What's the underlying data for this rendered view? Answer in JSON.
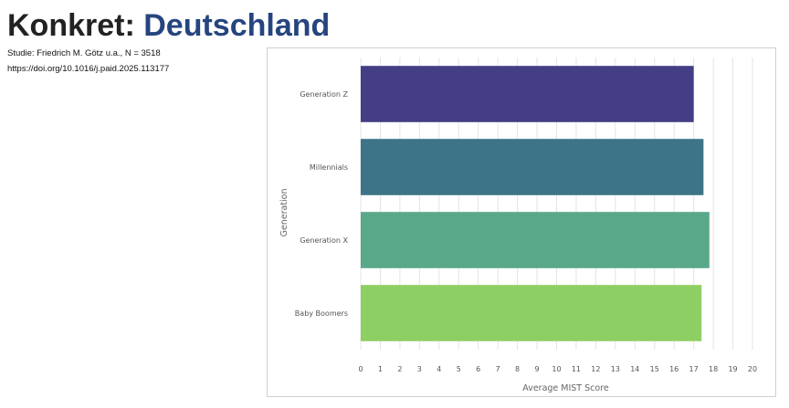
{
  "header": {
    "title_prefix": "Konkret: ",
    "title_accent": "Deutschland",
    "study": "Studie: Friedrich M. Götz u.a., N = 3518",
    "doi": "https://doi.org/10.1016/j.paid.2025.113177"
  },
  "colors": {
    "title_text": "#222222",
    "title_accent": "#26457f",
    "grid": "#e4e4e4",
    "frame_border": "#cfcfcf"
  },
  "chart_data": {
    "type": "bar",
    "orientation": "horizontal",
    "categories": [
      "Generation Z",
      "Millennials",
      "Generation X",
      "Baby Boomers"
    ],
    "values": [
      17.0,
      17.5,
      17.8,
      17.4
    ],
    "colors": [
      "#433e85",
      "#3e7488",
      "#5aa88a",
      "#8ecf63"
    ],
    "xlabel": "Average MIST Score",
    "ylabel": "Generation",
    "xlim": [
      0,
      20
    ],
    "xticks": [
      0,
      1,
      2,
      3,
      4,
      5,
      6,
      7,
      8,
      9,
      10,
      11,
      12,
      13,
      14,
      15,
      16,
      17,
      18,
      19,
      20
    ],
    "grid": "vertical"
  }
}
